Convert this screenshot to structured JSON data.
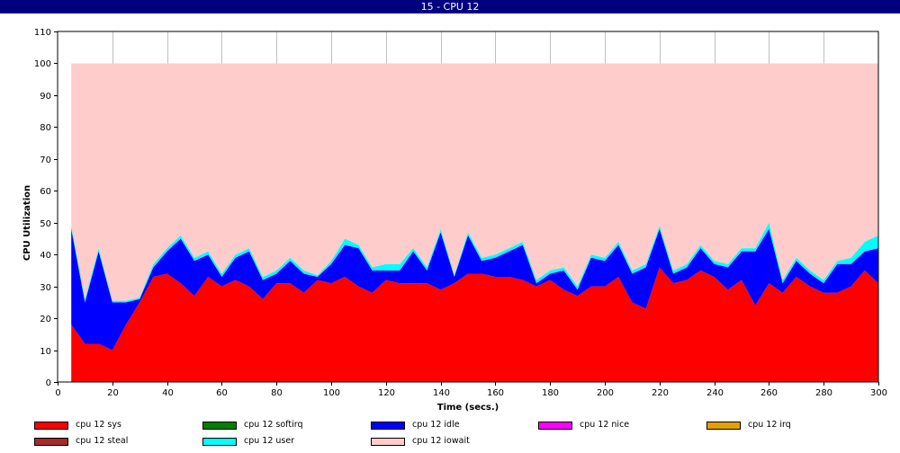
{
  "window": {
    "title": "15 - CPU 12"
  },
  "chart_data": {
    "type": "area",
    "stacked": true,
    "xlabel": "Time (secs.)",
    "ylabel": "CPU Utilization",
    "xlim": [
      0,
      300
    ],
    "ylim": [
      0,
      110
    ],
    "x_ticks": [
      0,
      20,
      40,
      60,
      80,
      100,
      120,
      140,
      160,
      180,
      200,
      220,
      240,
      260,
      280,
      300
    ],
    "y_ticks": [
      0,
      10,
      20,
      30,
      40,
      50,
      60,
      70,
      80,
      90,
      100,
      110
    ],
    "grid": "vertical",
    "legend_position": "bottom",
    "x": [
      5,
      10,
      15,
      20,
      25,
      30,
      35,
      40,
      45,
      50,
      55,
      60,
      65,
      70,
      75,
      80,
      85,
      90,
      95,
      100,
      105,
      110,
      115,
      120,
      125,
      130,
      135,
      140,
      145,
      150,
      155,
      160,
      165,
      170,
      175,
      180,
      185,
      190,
      195,
      200,
      205,
      210,
      215,
      220,
      225,
      230,
      235,
      240,
      245,
      250,
      255,
      260,
      265,
      270,
      275,
      280,
      285,
      290,
      295,
      300
    ],
    "series": [
      {
        "name": "cpu 12 sys",
        "color": "#ff0000",
        "values": [
          18,
          12,
          12,
          10,
          18,
          25,
          33,
          34,
          31,
          27,
          33,
          30,
          32,
          30,
          26,
          31,
          31,
          28,
          32,
          31,
          33,
          30,
          28,
          32,
          31,
          31,
          31,
          29,
          31,
          34,
          34,
          33,
          33,
          32,
          30,
          32,
          29,
          27,
          30,
          30,
          33,
          25,
          23,
          36,
          31,
          32,
          35,
          33,
          29,
          32,
          24,
          31,
          28,
          33,
          30,
          28,
          28,
          30,
          35,
          31
        ]
      },
      {
        "name": "cpu 12 softirq",
        "color": "#008000",
        "values": [
          0,
          0,
          0,
          0,
          0,
          0,
          0,
          0,
          0,
          0,
          0,
          0,
          0,
          0,
          0,
          0,
          0,
          0,
          0,
          0,
          0,
          0,
          0,
          0,
          0,
          0,
          0,
          0,
          0,
          0,
          0,
          0,
          0,
          0,
          0,
          0,
          0,
          0,
          0,
          0,
          0,
          0,
          0,
          0,
          0,
          0,
          0,
          0,
          0,
          0,
          0,
          0,
          0,
          0,
          0,
          0,
          0,
          0,
          0,
          0
        ]
      },
      {
        "name": "cpu 12 idle",
        "color": "#0000ff",
        "values": [
          30,
          13,
          29,
          15,
          7,
          1,
          3,
          7,
          14,
          11,
          7,
          3,
          7,
          11,
          6,
          3,
          7,
          6,
          1,
          6,
          10,
          12,
          7,
          3,
          4,
          10,
          4,
          18,
          2,
          12,
          4,
          6,
          8,
          11,
          1,
          2,
          6,
          2,
          9,
          8,
          10,
          9,
          13,
          12,
          3,
          4,
          7,
          4,
          7,
          9,
          17,
          17,
          3,
          5,
          4,
          3,
          9,
          7,
          6,
          11
        ]
      },
      {
        "name": "cpu 12 nice",
        "color": "#ff00ff",
        "values": [
          0,
          0,
          0,
          0,
          0,
          0,
          0,
          0,
          0,
          0,
          0,
          0,
          0,
          0,
          0,
          0,
          0,
          0,
          0,
          0,
          0,
          0,
          0,
          0,
          0,
          0,
          0,
          0,
          0,
          0,
          0,
          0,
          0,
          0,
          0,
          0,
          0,
          0,
          0,
          0,
          0,
          0,
          0,
          0,
          0,
          0,
          0,
          0,
          0,
          0,
          0,
          0,
          0,
          0,
          0,
          0,
          0,
          0,
          0,
          0
        ]
      },
      {
        "name": "cpu 12 irq",
        "color": "#e5a000",
        "values": [
          0,
          0,
          0,
          0,
          0,
          0,
          0,
          0,
          0,
          0,
          0,
          0,
          0,
          0,
          0,
          0,
          0,
          0,
          0,
          0,
          0,
          0,
          0,
          0,
          0,
          0,
          0,
          0,
          0,
          0,
          0,
          0,
          0,
          0,
          0,
          0,
          0,
          0,
          0,
          0,
          0,
          0,
          0,
          0,
          0,
          0,
          0,
          0,
          0,
          0,
          0,
          0,
          0,
          0,
          0,
          0,
          0,
          0,
          0,
          0
        ]
      },
      {
        "name": "cpu 12 steal",
        "color": "#a52a2a",
        "values": [
          0,
          0,
          0,
          0,
          0,
          0,
          0,
          0,
          0,
          0,
          0,
          0,
          0,
          0,
          0,
          0,
          0,
          0,
          0,
          0,
          0,
          0,
          0,
          0,
          0,
          0,
          0,
          0,
          0,
          0,
          0,
          0,
          0,
          0,
          0,
          0,
          0,
          0,
          0,
          0,
          0,
          0,
          0,
          0,
          0,
          0,
          0,
          0,
          0,
          0,
          0,
          0,
          0,
          0,
          0,
          0,
          0,
          0,
          0,
          0
        ]
      },
      {
        "name": "cpu 12 user",
        "color": "#00ffff",
        "values": [
          1,
          1,
          1,
          0.5,
          0.5,
          0.5,
          1,
          1,
          1,
          1,
          1,
          1,
          1,
          1,
          1,
          1,
          1,
          1,
          0.5,
          1,
          2,
          1,
          1,
          2,
          2,
          1,
          1,
          1,
          0.5,
          1,
          1,
          1,
          1,
          1,
          1,
          1,
          1,
          1,
          1,
          1,
          1,
          1,
          1,
          1,
          1,
          1,
          1,
          1,
          1,
          1,
          1,
          2,
          1,
          1,
          1,
          1,
          1,
          2,
          3,
          4
        ]
      },
      {
        "name": "cpu 12 iowait",
        "color": "#ffcccc",
        "values": [
          51,
          74,
          58,
          74.5,
          74.5,
          73.5,
          63,
          58,
          54,
          61,
          59,
          66,
          60,
          58,
          67,
          65,
          61,
          65,
          66.5,
          62,
          55,
          57,
          64,
          63,
          63,
          58,
          64,
          52,
          66.5,
          53,
          61,
          60,
          58,
          56,
          68,
          65,
          64,
          70,
          60,
          61,
          56,
          65,
          63,
          51,
          65,
          63,
          57,
          62,
          63,
          58,
          58,
          50,
          68,
          61,
          65,
          68,
          62,
          61,
          56,
          54
        ]
      }
    ]
  }
}
